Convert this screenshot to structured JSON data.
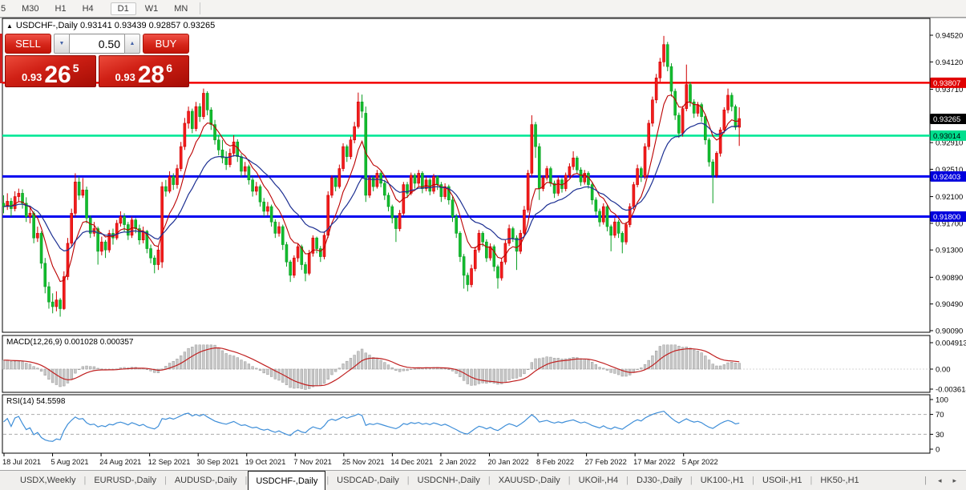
{
  "toolbar": {
    "timeframes": [
      {
        "label": "5",
        "active": false
      },
      {
        "label": "M30",
        "active": false
      },
      {
        "label": "H1",
        "active": false
      },
      {
        "label": "H4",
        "active": false
      },
      {
        "label": "D1",
        "active": true
      },
      {
        "label": "W1",
        "active": false
      },
      {
        "label": "MN",
        "active": false
      }
    ]
  },
  "header": {
    "collapse_icon": "▲",
    "symbol": "USDCHF-,Daily",
    "ohlc_text": "0.93141 0.93439 0.92857 0.93265"
  },
  "trade_panel": {
    "sell_label": "SELL",
    "buy_label": "BUY",
    "volume": "0.50",
    "spin_down_icon": "▼",
    "spin_up_icon": "▲",
    "sell_price": {
      "prefix": "0.93",
      "big": "26",
      "sup": "5"
    },
    "buy_price": {
      "prefix": "0.93",
      "big": "28",
      "sup": "6"
    }
  },
  "chart_data": {
    "type": "candlestick",
    "symbol": "USDCHF-",
    "timeframe": "Daily",
    "ylim": [
      0.90084,
      0.94709
    ],
    "y_ticks": [
      "0.94520",
      "0.94120",
      "0.93710",
      "0.93310",
      "0.92910",
      "0.92510",
      "0.92100",
      "0.91700",
      "0.91300",
      "0.90890",
      "0.90490",
      "0.90090"
    ],
    "x_labels": [
      "18 Jul 2021",
      "5 Aug 2021",
      "24 Aug 2021",
      "12 Sep 2021",
      "30 Sep 2021",
      "19 Oct 2021",
      "7 Nov 2021",
      "25 Nov 2021",
      "14 Dec 2021",
      "2 Jan 2022",
      "20 Jan 2022",
      "8 Feb 2022",
      "27 Feb 2022",
      "17 Mar 2022",
      "5 Apr 2022"
    ],
    "levels": [
      {
        "price": 0.93807,
        "color": "#f20000",
        "width": 2.6,
        "badge": "0.93807",
        "badge_bg": "#e00000",
        "badge_fg": "#ffffff"
      },
      {
        "price": 0.93014,
        "color": "#00e896",
        "width": 2.6,
        "badge": "0.93014",
        "badge_bg": "#00df8e",
        "badge_fg": "#000000"
      },
      {
        "price": 0.92403,
        "color": "#0000f0",
        "width": 3,
        "badge": "0.92403",
        "badge_bg": "#0000dd",
        "badge_fg": "#ffffff"
      },
      {
        "price": 0.918,
        "color": "#0000f0",
        "width": 3,
        "badge": "0.91800",
        "badge_bg": "#0000dd",
        "badge_fg": "#ffffff"
      }
    ],
    "current_price": {
      "value": 0.93265,
      "badge": "0.93265",
      "badge_bg": "#000000",
      "badge_fg": "#ffffff"
    },
    "colors": {
      "bull_fill": "#f21d1d",
      "bull_stroke": "#cf0000",
      "bear_fill": "#12bd2e",
      "bear_stroke": "#0a9e22",
      "ma_fast": "#bb0000",
      "ma_slow": "#1c2f92",
      "macd_bar_fill": "#c9c9c9",
      "macd_bar_stroke": "#979797",
      "macd_signal": "#c02020",
      "rsi_line": "#3e8ed8",
      "rsi_level_dash": "#ababab",
      "frame": "#000000",
      "axis_text": "#000000"
    },
    "candles_note": "values are price x 10000, format [open,high,low,close]",
    "candles": [
      [
        9200,
        9212,
        9185,
        9195
      ],
      [
        9195,
        9215,
        9190,
        9203
      ],
      [
        9203,
        9208,
        9180,
        9192
      ],
      [
        9192,
        9218,
        9188,
        9210
      ],
      [
        9210,
        9222,
        9202,
        9215
      ],
      [
        9215,
        9221,
        9192,
        9200
      ],
      [
        9200,
        9209,
        9172,
        9180
      ],
      [
        9180,
        9195,
        9170,
        9185
      ],
      [
        9185,
        9188,
        9140,
        9148
      ],
      [
        9148,
        9165,
        9142,
        9155
      ],
      [
        9155,
        9158,
        9102,
        9110
      ],
      [
        9110,
        9118,
        9065,
        9075
      ],
      [
        9075,
        9082,
        9042,
        9052
      ],
      [
        9052,
        9065,
        9035,
        9045
      ],
      [
        9045,
        9068,
        9038,
        9055
      ],
      [
        9055,
        9058,
        9030,
        9042
      ],
      [
        9042,
        9098,
        9040,
        9090
      ],
      [
        9090,
        9148,
        9085,
        9140
      ],
      [
        9140,
        9192,
        9135,
        9185
      ],
      [
        9185,
        9245,
        9180,
        9232
      ],
      [
        9232,
        9240,
        9205,
        9212
      ],
      [
        9212,
        9238,
        9208,
        9220
      ],
      [
        9220,
        9225,
        9170,
        9178
      ],
      [
        9178,
        9182,
        9148,
        9155
      ],
      [
        9155,
        9172,
        9150,
        9162
      ],
      [
        9162,
        9165,
        9108,
        9128
      ],
      [
        9128,
        9150,
        9122,
        9142
      ],
      [
        9142,
        9145,
        9118,
        9130
      ],
      [
        9130,
        9160,
        9126,
        9155
      ],
      [
        9155,
        9162,
        9138,
        9148
      ],
      [
        9148,
        9175,
        9145,
        9170
      ],
      [
        9170,
        9188,
        9165,
        9180
      ],
      [
        9180,
        9185,
        9158,
        9168
      ],
      [
        9168,
        9172,
        9145,
        9152
      ],
      [
        9152,
        9180,
        9148,
        9175
      ],
      [
        9175,
        9178,
        9155,
        9162
      ],
      [
        9162,
        9168,
        9138,
        9145
      ],
      [
        9145,
        9165,
        9140,
        9158
      ],
      [
        9158,
        9160,
        9125,
        9132
      ],
      [
        9132,
        9138,
        9110,
        9118
      ],
      [
        9118,
        9122,
        9095,
        9108
      ],
      [
        9108,
        9135,
        9100,
        9130
      ],
      [
        9112,
        9232,
        9103,
        9225
      ],
      [
        9225,
        9235,
        9210,
        9218
      ],
      [
        9218,
        9248,
        9215,
        9240
      ],
      [
        9240,
        9245,
        9220,
        9228
      ],
      [
        9228,
        9258,
        9222,
        9252
      ],
      [
        9252,
        9292,
        9248,
        9285
      ],
      [
        9285,
        9328,
        9280,
        9320
      ],
      [
        9320,
        9345,
        9312,
        9338
      ],
      [
        9338,
        9342,
        9305,
        9312
      ],
      [
        9312,
        9352,
        9308,
        9345
      ],
      [
        9345,
        9350,
        9322,
        9330
      ],
      [
        9330,
        9372,
        9326,
        9365
      ],
      [
        9365,
        9368,
        9332,
        9340
      ],
      [
        9340,
        9344,
        9310,
        9318
      ],
      [
        9318,
        9325,
        9288,
        9295
      ],
      [
        9295,
        9302,
        9272,
        9280
      ],
      [
        9280,
        9295,
        9260,
        9268
      ],
      [
        9268,
        9278,
        9250,
        9258
      ],
      [
        9258,
        9282,
        9254,
        9275
      ],
      [
        9275,
        9302,
        9270,
        9292
      ],
      [
        9292,
        9296,
        9262,
        9270
      ],
      [
        9270,
        9274,
        9240,
        9248
      ],
      [
        9248,
        9262,
        9242,
        9255
      ],
      [
        9255,
        9258,
        9228,
        9235
      ],
      [
        9235,
        9240,
        9210,
        9218
      ],
      [
        9218,
        9232,
        9212,
        9225
      ],
      [
        9225,
        9228,
        9195,
        9202
      ],
      [
        9202,
        9208,
        9180,
        9188
      ],
      [
        9188,
        9202,
        9182,
        9195
      ],
      [
        9195,
        9198,
        9165,
        9172
      ],
      [
        9172,
        9176,
        9148,
        9155
      ],
      [
        9155,
        9172,
        9150,
        9165
      ],
      [
        9165,
        9168,
        9130,
        9138
      ],
      [
        9138,
        9142,
        9105,
        9112
      ],
      [
        9112,
        9115,
        9082,
        9092
      ],
      [
        9092,
        9122,
        9088,
        9118
      ],
      [
        9118,
        9140,
        9112,
        9135
      ],
      [
        9135,
        9138,
        9100,
        9108
      ],
      [
        9108,
        9112,
        9083,
        9095
      ],
      [
        9095,
        9130,
        9092,
        9125
      ],
      [
        9125,
        9152,
        9120,
        9148
      ],
      [
        9148,
        9150,
        9125,
        9132
      ],
      [
        9132,
        9136,
        9112,
        9120
      ],
      [
        9120,
        9158,
        9116,
        9152
      ],
      [
        9152,
        9218,
        9148,
        9212
      ],
      [
        9212,
        9242,
        9208,
        9238
      ],
      [
        9238,
        9240,
        9218,
        9225
      ],
      [
        9225,
        9258,
        9222,
        9252
      ],
      [
        9252,
        9290,
        9248,
        9285
      ],
      [
        9285,
        9288,
        9262,
        9270
      ],
      [
        9270,
        9300,
        9266,
        9295
      ],
      [
        9295,
        9322,
        9290,
        9315
      ],
      [
        9315,
        9366,
        9312,
        9352
      ],
      [
        9352,
        9363,
        9328,
        9338
      ],
      [
        9335,
        9345,
        9202,
        9212
      ],
      [
        9212,
        9242,
        9208,
        9238
      ],
      [
        9238,
        9241,
        9218,
        9225
      ],
      [
        9225,
        9250,
        9222,
        9245
      ],
      [
        9245,
        9248,
        9224,
        9230
      ],
      [
        9230,
        9235,
        9205,
        9212
      ],
      [
        9212,
        9216,
        9188,
        9195
      ],
      [
        9195,
        9198,
        9170,
        9178
      ],
      [
        9178,
        9182,
        9142,
        9162
      ],
      [
        9162,
        9190,
        9158,
        9185
      ],
      [
        9185,
        9232,
        9182,
        9228
      ],
      [
        9228,
        9232,
        9208,
        9215
      ],
      [
        9215,
        9246,
        9212,
        9242
      ],
      [
        9242,
        9245,
        9222,
        9230
      ],
      [
        9230,
        9250,
        9226,
        9245
      ],
      [
        9245,
        9248,
        9215,
        9222
      ],
      [
        9222,
        9240,
        9218,
        9235
      ],
      [
        9235,
        9238,
        9212,
        9218
      ],
      [
        9218,
        9244,
        9214,
        9240
      ],
      [
        9240,
        9242,
        9220,
        9228
      ],
      [
        9228,
        9232,
        9202,
        9210
      ],
      [
        9210,
        9230,
        9206,
        9225
      ],
      [
        9225,
        9228,
        9198,
        9205
      ],
      [
        9205,
        9210,
        9172,
        9180
      ],
      [
        9180,
        9184,
        9148,
        9155
      ],
      [
        9155,
        9158,
        9112,
        9120
      ],
      [
        9120,
        9124,
        9072,
        9092
      ],
      [
        9092,
        9096,
        9068,
        9078
      ],
      [
        9078,
        9108,
        9074,
        9102
      ],
      [
        9102,
        9135,
        9098,
        9130
      ],
      [
        9130,
        9160,
        9126,
        9155
      ],
      [
        9155,
        9158,
        9135,
        9142
      ],
      [
        9142,
        9146,
        9112,
        9118
      ],
      [
        9118,
        9140,
        9114,
        9135
      ],
      [
        9135,
        9138,
        9098,
        9105
      ],
      [
        9105,
        9108,
        9072,
        9088
      ],
      [
        9088,
        9118,
        9084,
        9112
      ],
      [
        9112,
        9145,
        9108,
        9140
      ],
      [
        9140,
        9168,
        9136,
        9162
      ],
      [
        9162,
        9165,
        9142,
        9148
      ],
      [
        9148,
        9152,
        9100,
        9128
      ],
      [
        9128,
        9160,
        9124,
        9155
      ],
      [
        9155,
        9196,
        9150,
        9190
      ],
      [
        9190,
        9250,
        9186,
        9245
      ],
      [
        9245,
        9332,
        9240,
        9318
      ],
      [
        9318,
        9322,
        9268,
        9285
      ],
      [
        9285,
        9290,
        9205,
        9222
      ],
      [
        9222,
        9242,
        9218,
        9238
      ],
      [
        9238,
        9256,
        9234,
        9252
      ],
      [
        9252,
        9255,
        9225,
        9230
      ],
      [
        9230,
        9234,
        9208,
        9215
      ],
      [
        9215,
        9240,
        9211,
        9235
      ],
      [
        9235,
        9238,
        9216,
        9222
      ],
      [
        9222,
        9246,
        9218,
        9242
      ],
      [
        9242,
        9260,
        9238,
        9255
      ],
      [
        9255,
        9278,
        9250,
        9268
      ],
      [
        9268,
        9271,
        9244,
        9250
      ],
      [
        9250,
        9254,
        9226,
        9232
      ],
      [
        9232,
        9250,
        9228,
        9245
      ],
      [
        9245,
        9248,
        9222,
        9228
      ],
      [
        9228,
        9232,
        9198,
        9205
      ],
      [
        9205,
        9209,
        9182,
        9188
      ],
      [
        9188,
        9192,
        9165,
        9172
      ],
      [
        9172,
        9200,
        9168,
        9195
      ],
      [
        9195,
        9198,
        9158,
        9165
      ],
      [
        9165,
        9168,
        9128,
        9152
      ],
      [
        9152,
        9178,
        9148,
        9172
      ],
      [
        9172,
        9175,
        9148,
        9155
      ],
      [
        9155,
        9158,
        9125,
        9142
      ],
      [
        9142,
        9172,
        9138,
        9168
      ],
      [
        9168,
        9200,
        9164,
        9195
      ],
      [
        9195,
        9232,
        9190,
        9228
      ],
      [
        9228,
        9258,
        9224,
        9252
      ],
      [
        9252,
        9255,
        9232,
        9240
      ],
      [
        9240,
        9290,
        9236,
        9285
      ],
      [
        9285,
        9325,
        9280,
        9320
      ],
      [
        9320,
        9360,
        9315,
        9355
      ],
      [
        9355,
        9394,
        9350,
        9388
      ],
      [
        9388,
        9418,
        9382,
        9412
      ],
      [
        9412,
        9451,
        9405,
        9438
      ],
      [
        9438,
        9442,
        9398,
        9405
      ],
      [
        9405,
        9410,
        9360,
        9368
      ],
      [
        9368,
        9372,
        9325,
        9332
      ],
      [
        9332,
        9336,
        9298,
        9305
      ],
      [
        9305,
        9346,
        9300,
        9342
      ],
      [
        9342,
        9408,
        9338,
        9378
      ],
      [
        9378,
        9382,
        9345,
        9352
      ],
      [
        9352,
        9356,
        9328,
        9335
      ],
      [
        9335,
        9352,
        9330,
        9348
      ],
      [
        9348,
        9351,
        9322,
        9330
      ],
      [
        9330,
        9334,
        9288,
        9295
      ],
      [
        9295,
        9298,
        9255,
        9262
      ],
      [
        9262,
        9266,
        9200,
        9242
      ],
      [
        9242,
        9278,
        9238,
        9275
      ],
      [
        9275,
        9314,
        9270,
        9310
      ],
      [
        9310,
        9344,
        9305,
        9340
      ],
      [
        9340,
        9372,
        9335,
        9362
      ],
      [
        9362,
        9366,
        9338,
        9345
      ],
      [
        9345,
        9348,
        9310,
        9314
      ],
      [
        9314,
        9344,
        9286,
        9327
      ]
    ]
  },
  "macd": {
    "label": "MACD(12,26,9) 0.001028 0.000357",
    "values_shown": [
      "0.001028",
      "0.000357"
    ],
    "ticks": [
      {
        "label": "0.004913",
        "y": 428
      },
      {
        "label": "0.00",
        "y": 461
      },
      {
        "label": "-0.003614",
        "y": 486
      }
    ]
  },
  "rsi": {
    "label": "RSI(14) 54.5598",
    "value_shown": "54.5598",
    "levels": [
      70,
      30
    ],
    "ticks": [
      {
        "label": "100",
        "value": 100
      },
      {
        "label": "70",
        "value": 70
      },
      {
        "label": "30",
        "value": 30
      },
      {
        "label": "0",
        "value": 0
      }
    ]
  },
  "tabs": {
    "items": [
      "USDX,Weekly",
      "EURUSD-,Daily",
      "AUDUSD-,Daily",
      "USDCHF-,Daily",
      "USDCAD-,Daily",
      "USDCNH-,Daily",
      "XAUUSD-,Daily",
      "UKOil-,H4",
      "DJ30-,Daily",
      "UK100-,H1",
      "USOil-,H1",
      "HK50-,H1"
    ],
    "active": "USDCHF-,Daily",
    "scroll_left_icon": "◂",
    "scroll_right_icon": "▸",
    "separator": "|"
  }
}
